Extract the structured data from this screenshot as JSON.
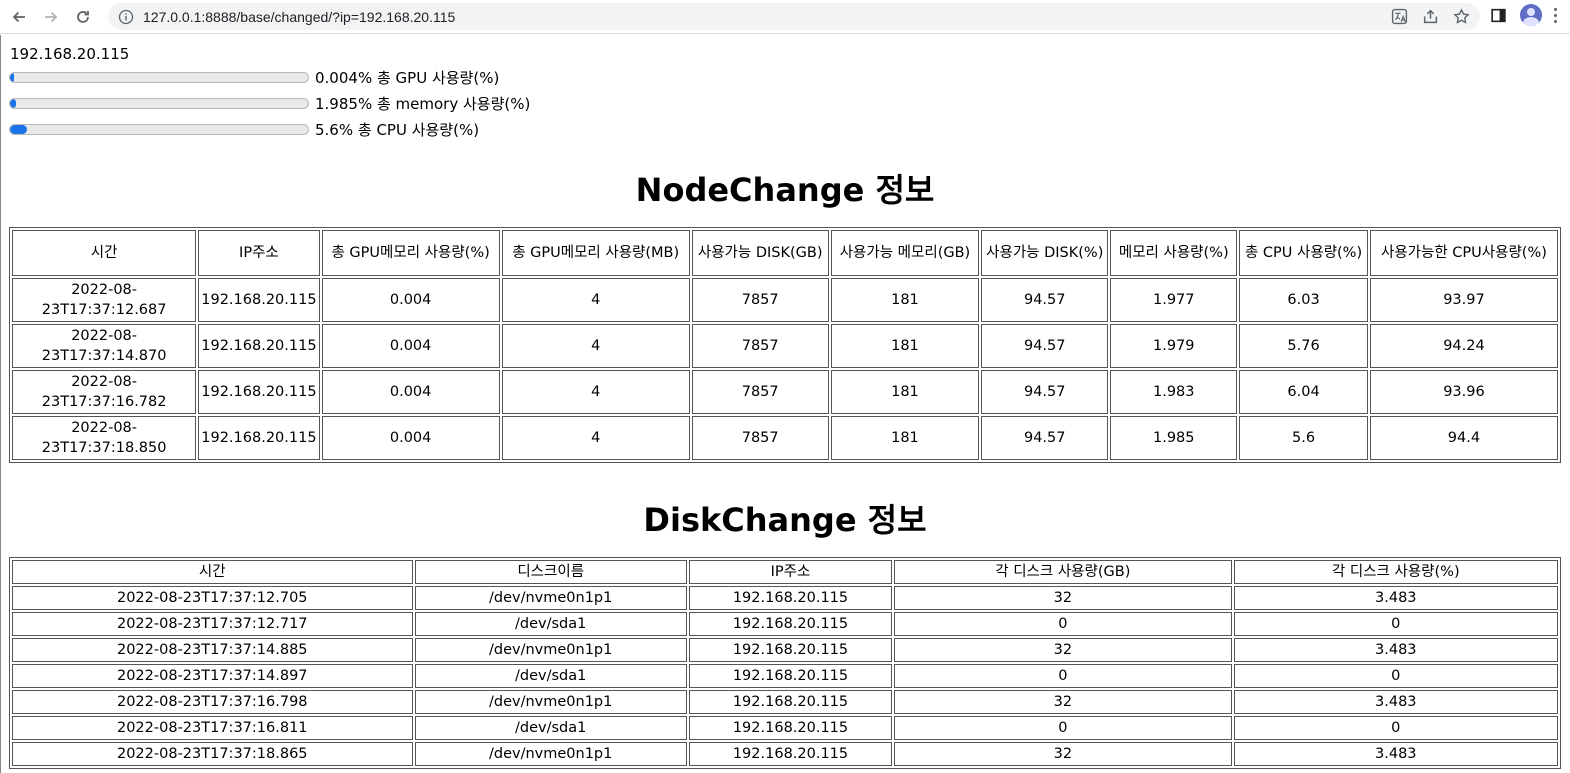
{
  "browser": {
    "url": "127.0.0.1:8888/base/changed/?ip=192.168.20.115"
  },
  "host_ip": "192.168.20.115",
  "gauges": [
    {
      "text": "0.004% 총 GPU 사용량(%)",
      "percent": 0.004
    },
    {
      "text": "1.985% 총 memory 사용량(%)",
      "percent": 1.985
    },
    {
      "text": "5.6% 총 CPU 사용량(%)",
      "percent": 5.6
    }
  ],
  "node_section": {
    "title": "NodeChange 정보",
    "headers": [
      "시간",
      "IP주소",
      "총 GPU메모리 사용량(%)",
      "총 GPU메모리 사용량(MB)",
      "사용가능 DISK(GB)",
      "사용가능 메모리(GB)",
      "사용가능 DISK(%)",
      "메모리 사용량(%)",
      "총 CPU 사용량(%)",
      "사용가능한 CPU사용량(%)"
    ],
    "rows": [
      [
        "2022-08-23T17:37:12.687",
        "192.168.20.115",
        "0.004",
        "4",
        "7857",
        "181",
        "94.57",
        "1.977",
        "6.03",
        "93.97"
      ],
      [
        "2022-08-23T17:37:14.870",
        "192.168.20.115",
        "0.004",
        "4",
        "7857",
        "181",
        "94.57",
        "1.979",
        "5.76",
        "94.24"
      ],
      [
        "2022-08-23T17:37:16.782",
        "192.168.20.115",
        "0.004",
        "4",
        "7857",
        "181",
        "94.57",
        "1.983",
        "6.04",
        "93.96"
      ],
      [
        "2022-08-23T17:37:18.850",
        "192.168.20.115",
        "0.004",
        "4",
        "7857",
        "181",
        "94.57",
        "1.985",
        "5.6",
        "94.4"
      ]
    ]
  },
  "disk_section": {
    "title": "DiskChange 정보",
    "headers": [
      "시간",
      "디스크이름",
      "IP주소",
      "각 디스크 사용량(GB)",
      "각 디스크 사용량(%)"
    ],
    "rows": [
      [
        "2022-08-23T17:37:12.705",
        "/dev/nvme0n1p1",
        "192.168.20.115",
        "32",
        "3.483"
      ],
      [
        "2022-08-23T17:37:12.717",
        "/dev/sda1",
        "192.168.20.115",
        "0",
        "0"
      ],
      [
        "2022-08-23T17:37:14.885",
        "/dev/nvme0n1p1",
        "192.168.20.115",
        "32",
        "3.483"
      ],
      [
        "2022-08-23T17:37:14.897",
        "/dev/sda1",
        "192.168.20.115",
        "0",
        "0"
      ],
      [
        "2022-08-23T17:37:16.798",
        "/dev/nvme0n1p1",
        "192.168.20.115",
        "32",
        "3.483"
      ],
      [
        "2022-08-23T17:37:16.811",
        "/dev/sda1",
        "192.168.20.115",
        "0",
        "0"
      ],
      [
        "2022-08-23T17:37:18.865",
        "/dev/nvme0n1p1",
        "192.168.20.115",
        "32",
        "3.483"
      ]
    ]
  },
  "colors": {
    "bar_fill": "#1a73e8",
    "bar_track": "#e9e9e9"
  }
}
